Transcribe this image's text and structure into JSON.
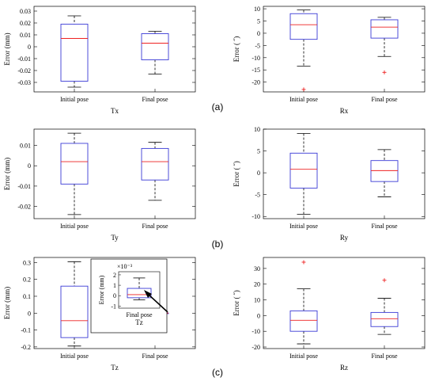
{
  "panel_labels": [
    "(a)",
    "(b)",
    "(c)"
  ],
  "inset": {
    "exponent": "×10⁻³",
    "category": "Final pose",
    "xlabel": "Tz",
    "ylabel": "Error (mm)",
    "ylim": [
      -1.2,
      2.3
    ],
    "yticks": [
      -1,
      0,
      1,
      2
    ],
    "box": {
      "min": -0.4,
      "q1": -0.2,
      "median": 0.1,
      "q3": 0.7,
      "max": 1.7
    }
  },
  "chart_data": [
    {
      "type": "box",
      "xlabel": "Tx",
      "ylabel": "Error (mm)",
      "categories": [
        "Initial pose",
        "Final pose"
      ],
      "ylim": [
        -0.038,
        0.034
      ],
      "yticks": [
        0.03,
        0.02,
        0.01,
        0,
        -0.01,
        -0.02,
        -0.03
      ],
      "ytick_labels": [
        "0.03",
        "0.02",
        "0.01",
        "0",
        "-0.01",
        "-0.02",
        "-0.03"
      ],
      "boxes": [
        {
          "min": -0.034,
          "q1": -0.029,
          "median": 0.007,
          "q3": 0.019,
          "max": 0.026,
          "outliers": []
        },
        {
          "min": -0.023,
          "q1": -0.011,
          "median": 0.003,
          "q3": 0.011,
          "max": 0.013,
          "outliers": []
        }
      ]
    },
    {
      "type": "box",
      "xlabel": "Rx",
      "ylabel": "Error ( ˝)",
      "categories": [
        "Initial pose",
        "Final pose"
      ],
      "ylim": [
        -24,
        11
      ],
      "yticks": [
        10,
        5,
        0,
        -5,
        -10,
        -15,
        -20
      ],
      "ytick_labels": [
        "10",
        "5",
        "0",
        "-5",
        "-10",
        "-15",
        "-20"
      ],
      "boxes": [
        {
          "min": -13.5,
          "q1": -2.5,
          "median": 3.5,
          "q3": 8,
          "max": 9.5,
          "outliers": [
            -23
          ]
        },
        {
          "min": -9.5,
          "q1": -2,
          "median": 2.5,
          "q3": 5.5,
          "max": 6.5,
          "outliers": [
            -16
          ]
        }
      ]
    },
    {
      "type": "box",
      "xlabel": "Ty",
      "ylabel": "Error (mm)",
      "categories": [
        "Initial pose",
        "Final pose"
      ],
      "ylim": [
        -0.026,
        0.018
      ],
      "yticks": [
        0.01,
        0,
        -0.01,
        -0.02
      ],
      "ytick_labels": [
        "0.01",
        "0",
        "-0.01",
        "-0.02"
      ],
      "boxes": [
        {
          "min": -0.024,
          "q1": -0.009,
          "median": 0.002,
          "q3": 0.011,
          "max": 0.016,
          "outliers": []
        },
        {
          "min": -0.017,
          "q1": -0.007,
          "median": 0.002,
          "q3": 0.0085,
          "max": 0.0115,
          "outliers": []
        }
      ]
    },
    {
      "type": "box",
      "xlabel": "Ry",
      "ylabel": "Error ( ˝)",
      "categories": [
        "Initial pose",
        "Final pose"
      ],
      "ylim": [
        -10.5,
        10
      ],
      "yticks": [
        10,
        5,
        0,
        -5,
        -10
      ],
      "ytick_labels": [
        "10",
        "5",
        "0",
        "-5",
        "-10"
      ],
      "boxes": [
        {
          "min": -9.5,
          "q1": -3.5,
          "median": 0.8,
          "q3": 4.5,
          "max": 9,
          "outliers": []
        },
        {
          "min": -5.5,
          "q1": -2,
          "median": 0.5,
          "q3": 2.8,
          "max": 5.3,
          "outliers": []
        }
      ]
    },
    {
      "type": "box",
      "xlabel": "Tz",
      "ylabel": "Error (mm)",
      "categories": [
        "Initial pose",
        "Final pose"
      ],
      "ylim": [
        -0.21,
        0.33
      ],
      "yticks": [
        0.3,
        0.2,
        0.1,
        0,
        -0.1,
        -0.2
      ],
      "ytick_labels": [
        "0.3",
        "0.2",
        "0.1",
        "0",
        "-0.1",
        "-0.2"
      ],
      "boxes": [
        {
          "min": -0.195,
          "q1": -0.145,
          "median": -0.045,
          "q3": 0.16,
          "max": 0.305,
          "outliers": []
        },
        {
          "min": -0.0004,
          "q1": -0.0002,
          "median": 0.0001,
          "q3": 0.0007,
          "max": 0.0017,
          "outliers": []
        }
      ]
    },
    {
      "type": "box",
      "xlabel": "Rz",
      "ylabel": "Error ( ˝)",
      "categories": [
        "Initial pose",
        "Final pose"
      ],
      "ylim": [
        -21,
        37
      ],
      "yticks": [
        30,
        20,
        10,
        0,
        -10,
        -20
      ],
      "ytick_labels": [
        "30",
        "20",
        "10",
        "0",
        "-10",
        "-20"
      ],
      "boxes": [
        {
          "min": -18,
          "q1": -10,
          "median": -3,
          "q3": 3,
          "max": 17,
          "outliers": [
            34
          ]
        },
        {
          "min": -12,
          "q1": -7,
          "median": -2,
          "q3": 2,
          "max": 11,
          "outliers": [
            22.5
          ]
        }
      ]
    }
  ]
}
